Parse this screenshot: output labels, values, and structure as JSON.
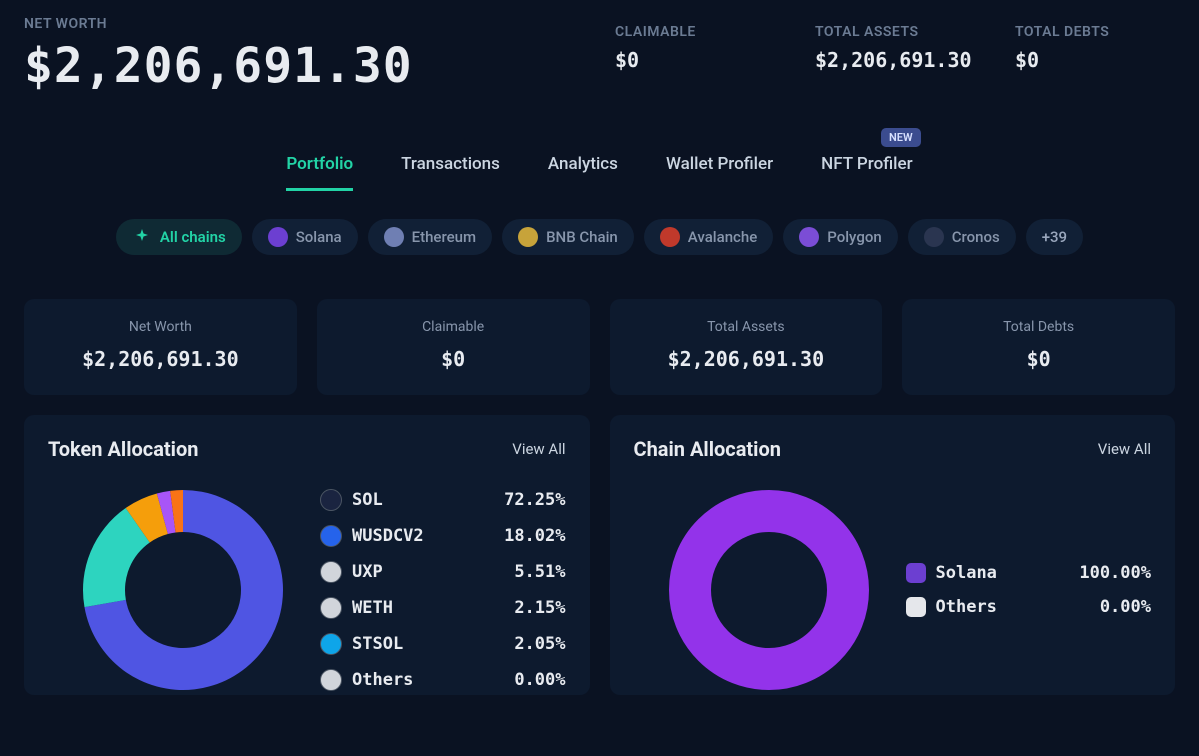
{
  "colors": {
    "background": "#0a1222",
    "card_bg": "#0d1a2e",
    "text_primary": "#e8ebf0",
    "text_muted": "#8896ac",
    "accent": "#22d3a6"
  },
  "header": {
    "net_worth_label": "NET WORTH",
    "net_worth_value": "$2,206,691.30",
    "stats": [
      {
        "label": "CLAIMABLE",
        "value": "$0"
      },
      {
        "label": "TOTAL ASSETS",
        "value": "$2,206,691.30"
      },
      {
        "label": "TOTAL DEBTS",
        "value": "$0"
      }
    ]
  },
  "tabs": [
    {
      "label": "Portfolio",
      "active": true
    },
    {
      "label": "Transactions",
      "active": false
    },
    {
      "label": "Analytics",
      "active": false
    },
    {
      "label": "Wallet Profiler",
      "active": false
    },
    {
      "label": "NFT Profiler",
      "active": false,
      "badge": "NEW"
    }
  ],
  "chains": {
    "active": {
      "label": "All chains",
      "icon": "sparkle",
      "color": "#22d3a6"
    },
    "items": [
      {
        "label": "Solana",
        "color": "#6c3fd1"
      },
      {
        "label": "Ethereum",
        "color": "#6f7fb3"
      },
      {
        "label": "BNB Chain",
        "color": "#c7a33a"
      },
      {
        "label": "Avalanche",
        "color": "#c0392b"
      },
      {
        "label": "Polygon",
        "color": "#7b4dd6"
      },
      {
        "label": "Cronos",
        "color": "#2a3550"
      }
    ],
    "more_label": "+39"
  },
  "summary_cards": [
    {
      "label": "Net Worth",
      "value": "$2,206,691.30"
    },
    {
      "label": "Claimable",
      "value": "$0"
    },
    {
      "label": "Total Assets",
      "value": "$2,206,691.30"
    },
    {
      "label": "Total Debts",
      "value": "$0"
    }
  ],
  "token_allocation": {
    "title": "Token Allocation",
    "view_all": "View All",
    "donut": {
      "type": "donut",
      "outer_radius": 100,
      "inner_radius": 58,
      "background_color": "#0d1a2e",
      "slices": [
        {
          "label": "SOL",
          "value": 72.25,
          "color": "#4f55e3",
          "icon_bg": "#1a2440"
        },
        {
          "label": "WUSDCV2",
          "value": 18.02,
          "color": "#2dd4bf",
          "icon_bg": "#2563eb"
        },
        {
          "label": "UXP",
          "value": 5.51,
          "color": "#f59e0b",
          "icon_bg": "#d1d5db"
        },
        {
          "label": "WETH",
          "value": 2.15,
          "color": "#a855f7",
          "icon_bg": "#d1d5db"
        },
        {
          "label": "STSOL",
          "value": 2.05,
          "color": "#f97316",
          "icon_bg": "#0ea5e9"
        },
        {
          "label": "Others",
          "value": 0.0,
          "color": "#6b7280",
          "icon_bg": "#d1d5db"
        }
      ]
    }
  },
  "chain_allocation": {
    "title": "Chain Allocation",
    "view_all": "View All",
    "donut": {
      "type": "donut",
      "outer_radius": 100,
      "inner_radius": 58,
      "background_color": "#0d1a2e",
      "slices": [
        {
          "label": "Solana",
          "value": 100.0,
          "color": "#9333ea",
          "legend_bg": "#6c3fd1",
          "legend_shape": "square"
        },
        {
          "label": "Others",
          "value": 0.0,
          "color": "#6b7280",
          "legend_bg": "#e5e7eb",
          "legend_shape": "square"
        }
      ]
    }
  }
}
